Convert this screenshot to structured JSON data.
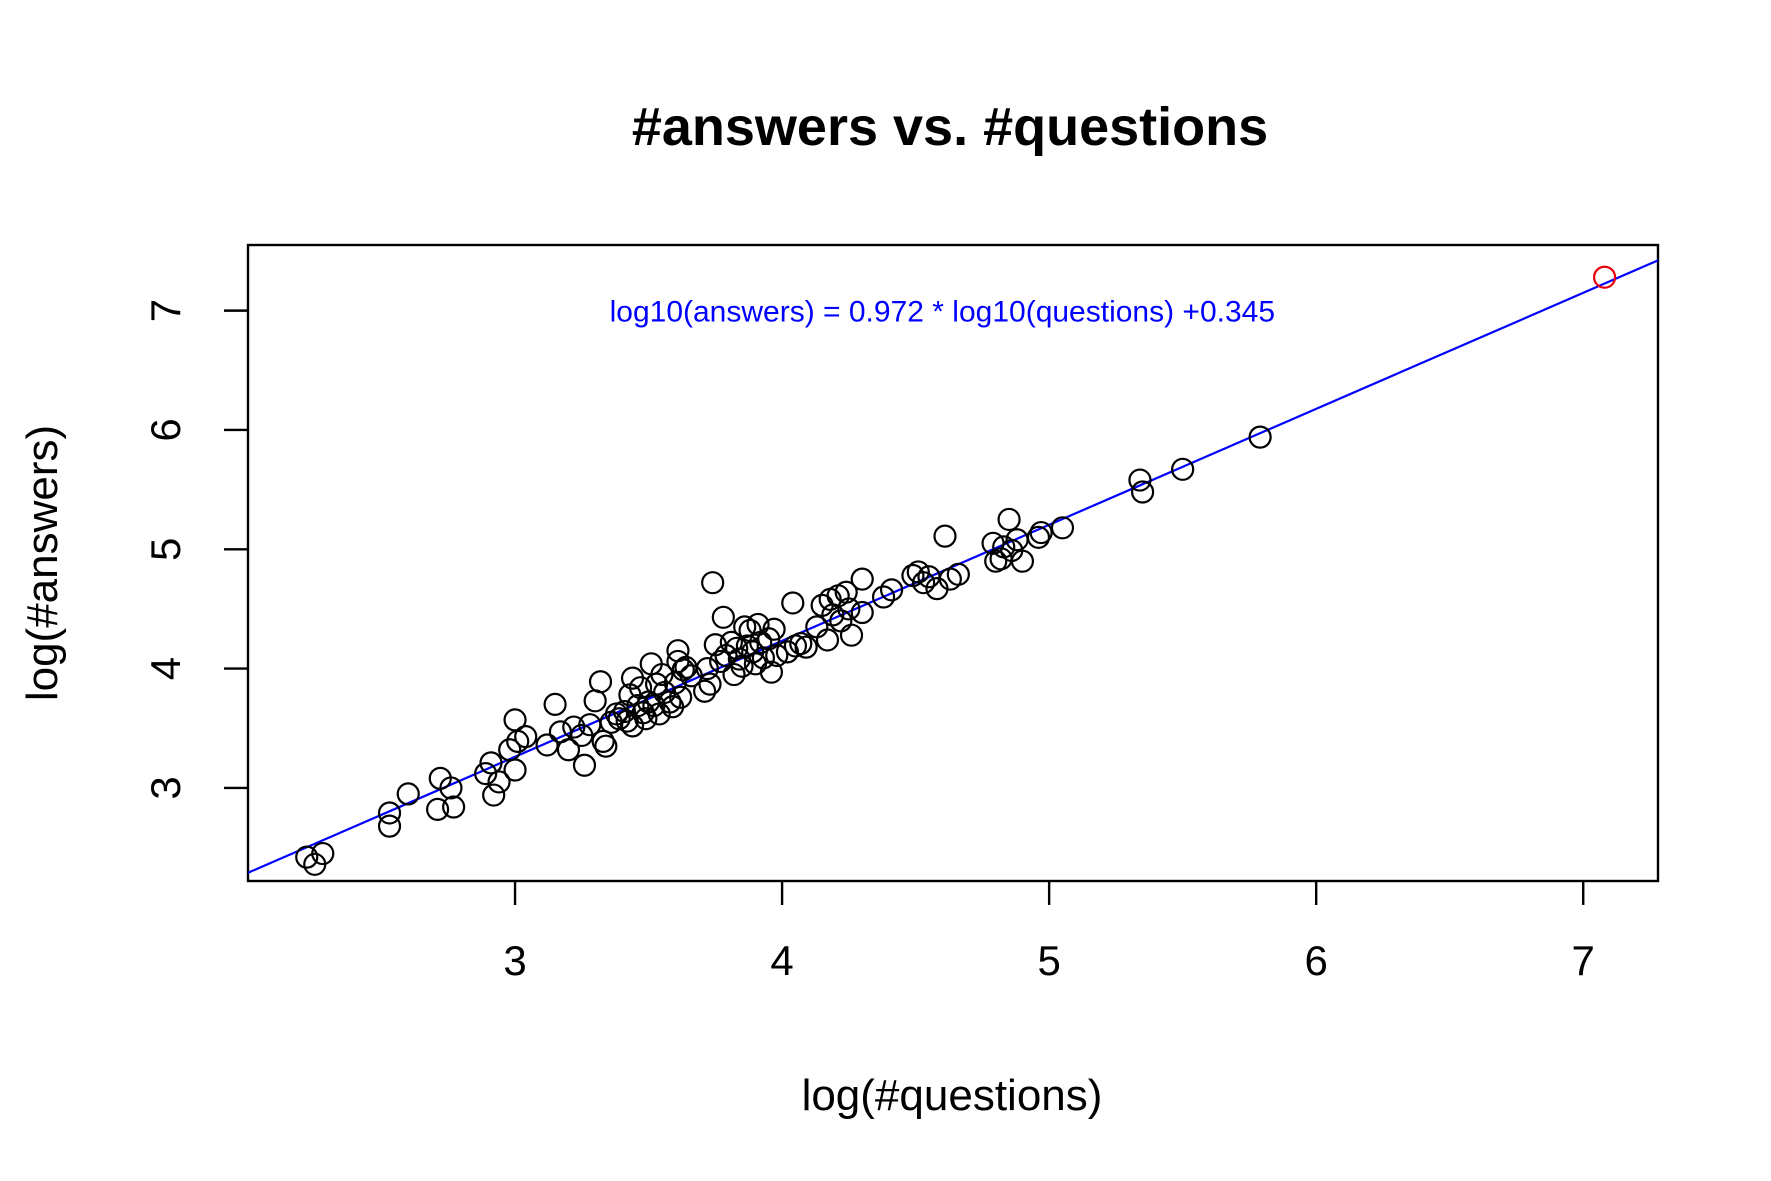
{
  "chart_data": {
    "type": "scatter",
    "title": "#answers vs. #questions",
    "xlabel": "log(#questions)",
    "ylabel": "log(#answers)",
    "xlim": [
      2.0,
      7.28
    ],
    "ylim": [
      2.22,
      7.55
    ],
    "x_ticks": [
      3,
      4,
      5,
      6,
      7
    ],
    "y_ticks": [
      3,
      4,
      5,
      6,
      7
    ],
    "grid": false,
    "legend": "none",
    "fit_line": {
      "slope": 0.972,
      "intercept": 0.345,
      "color": "#0000ff"
    },
    "annotation": {
      "text": "log10(answers) = 0.972 * log10(questions) +0.345",
      "x": 4.6,
      "y": 7.0,
      "color": "#0000ff"
    },
    "point_color": "#000000",
    "highlight_color": "#e8000b",
    "series": [
      {
        "values": [
          [
            2.22,
            2.42
          ],
          [
            2.25,
            2.36
          ],
          [
            2.28,
            2.45
          ],
          [
            2.53,
            2.79
          ],
          [
            2.53,
            2.68
          ],
          [
            2.6,
            2.95
          ],
          [
            2.71,
            2.82
          ],
          [
            2.72,
            3.08
          ],
          [
            2.76,
            3.0
          ],
          [
            2.77,
            2.84
          ],
          [
            2.89,
            3.12
          ],
          [
            2.91,
            3.21
          ],
          [
            2.92,
            2.94
          ],
          [
            2.94,
            3.05
          ],
          [
            2.98,
            3.32
          ],
          [
            3.0,
            3.57
          ],
          [
            3.0,
            3.15
          ],
          [
            3.01,
            3.39
          ],
          [
            3.04,
            3.43
          ],
          [
            3.12,
            3.36
          ],
          [
            3.15,
            3.7
          ],
          [
            3.17,
            3.47
          ],
          [
            3.2,
            3.32
          ],
          [
            3.22,
            3.51
          ],
          [
            3.25,
            3.44
          ],
          [
            3.26,
            3.19
          ],
          [
            3.28,
            3.53
          ],
          [
            3.3,
            3.73
          ],
          [
            3.32,
            3.89
          ],
          [
            3.33,
            3.39
          ],
          [
            3.34,
            3.35
          ],
          [
            3.36,
            3.55
          ],
          [
            3.38,
            3.62
          ],
          [
            3.39,
            3.58
          ],
          [
            3.41,
            3.64
          ],
          [
            3.42,
            3.56
          ],
          [
            3.43,
            3.78
          ],
          [
            3.44,
            3.52
          ],
          [
            3.44,
            3.92
          ],
          [
            3.46,
            3.69
          ],
          [
            3.47,
            3.84
          ],
          [
            3.48,
            3.63
          ],
          [
            3.49,
            3.58
          ],
          [
            3.5,
            3.72
          ],
          [
            3.51,
            4.04
          ],
          [
            3.52,
            3.69
          ],
          [
            3.53,
            3.87
          ],
          [
            3.54,
            3.62
          ],
          [
            3.55,
            3.95
          ],
          [
            3.56,
            3.8
          ],
          [
            3.58,
            3.72
          ],
          [
            3.59,
            3.68
          ],
          [
            3.6,
            3.88
          ],
          [
            3.61,
            4.15
          ],
          [
            3.61,
            4.06
          ],
          [
            3.62,
            3.76
          ],
          [
            3.63,
            3.99
          ],
          [
            3.64,
            4.01
          ],
          [
            3.66,
            3.94
          ],
          [
            3.71,
            3.81
          ],
          [
            3.72,
            4.0
          ],
          [
            3.73,
            3.87
          ],
          [
            3.74,
            4.72
          ],
          [
            3.75,
            4.2
          ],
          [
            3.77,
            4.06
          ],
          [
            3.78,
            4.43
          ],
          [
            3.79,
            4.11
          ],
          [
            3.81,
            4.22
          ],
          [
            3.82,
            3.95
          ],
          [
            3.83,
            4.17
          ],
          [
            3.84,
            4.08
          ],
          [
            3.85,
            4.02
          ],
          [
            3.86,
            4.35
          ],
          [
            3.87,
            4.19
          ],
          [
            3.88,
            4.32
          ],
          [
            3.89,
            4.14
          ],
          [
            3.9,
            4.04
          ],
          [
            3.91,
            4.37
          ],
          [
            3.92,
            4.22
          ],
          [
            3.93,
            4.09
          ],
          [
            3.95,
            4.25
          ],
          [
            3.96,
            3.97
          ],
          [
            3.97,
            4.33
          ],
          [
            3.98,
            4.11
          ],
          [
            4.02,
            4.14
          ],
          [
            4.04,
            4.55
          ],
          [
            4.05,
            4.19
          ],
          [
            4.07,
            4.21
          ],
          [
            4.09,
            4.18
          ],
          [
            4.13,
            4.35
          ],
          [
            4.15,
            4.53
          ],
          [
            4.17,
            4.24
          ],
          [
            4.18,
            4.58
          ],
          [
            4.19,
            4.45
          ],
          [
            4.21,
            4.61
          ],
          [
            4.22,
            4.4
          ],
          [
            4.24,
            4.64
          ],
          [
            4.25,
            4.5
          ],
          [
            4.26,
            4.28
          ],
          [
            4.3,
            4.75
          ],
          [
            4.3,
            4.47
          ],
          [
            4.38,
            4.6
          ],
          [
            4.41,
            4.66
          ],
          [
            4.49,
            4.78
          ],
          [
            4.51,
            4.81
          ],
          [
            4.53,
            4.72
          ],
          [
            4.55,
            4.77
          ],
          [
            4.58,
            4.67
          ],
          [
            4.61,
            5.11
          ],
          [
            4.63,
            4.75
          ],
          [
            4.66,
            4.79
          ],
          [
            4.79,
            5.05
          ],
          [
            4.8,
            4.9
          ],
          [
            4.82,
            4.92
          ],
          [
            4.83,
            5.02
          ],
          [
            4.85,
            5.25
          ],
          [
            4.86,
            4.99
          ],
          [
            4.88,
            5.08
          ],
          [
            4.9,
            4.9
          ],
          [
            4.96,
            5.1
          ],
          [
            4.97,
            5.14
          ],
          [
            5.05,
            5.18
          ],
          [
            5.34,
            5.58
          ],
          [
            5.35,
            5.48
          ],
          [
            5.5,
            5.67
          ],
          [
            5.79,
            5.94
          ]
        ]
      },
      {
        "values": [
          [
            7.08,
            7.28
          ]
        ],
        "highlight": true
      }
    ]
  }
}
